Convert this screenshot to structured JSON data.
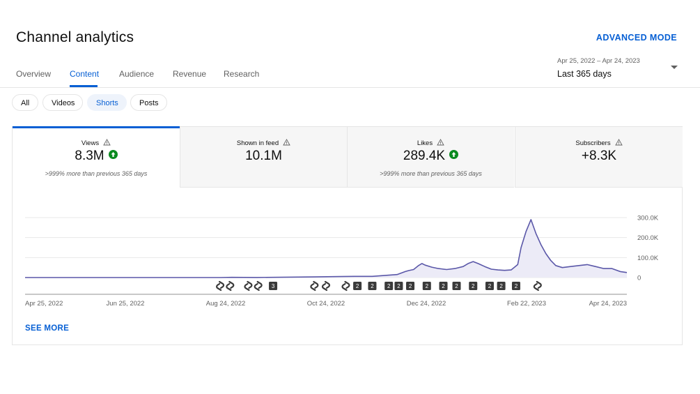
{
  "header": {
    "title": "Channel analytics",
    "advanced_mode": "ADVANCED MODE"
  },
  "tabs": [
    {
      "label": "Overview",
      "active": false
    },
    {
      "label": "Content",
      "active": true
    },
    {
      "label": "Audience",
      "active": false
    },
    {
      "label": "Revenue",
      "active": false
    },
    {
      "label": "Research",
      "active": false
    }
  ],
  "date_range": {
    "range": "Apr 25, 2022 – Apr 24, 2023",
    "label": "Last 365 days"
  },
  "chips": [
    {
      "label": "All",
      "selected": false
    },
    {
      "label": "Videos",
      "selected": false
    },
    {
      "label": "Shorts",
      "selected": true
    },
    {
      "label": "Posts",
      "selected": false
    }
  ],
  "metrics": [
    {
      "label": "Views",
      "value": "8.3M",
      "trend_up": true,
      "comparison": ">999% more than previous 365 days"
    },
    {
      "label": "Shown in feed",
      "value": "10.1M",
      "trend_up": false,
      "comparison": ""
    },
    {
      "label": "Likes",
      "value": "289.4K",
      "trend_up": true,
      "comparison": ">999% more than previous 365 days"
    },
    {
      "label": "Subscribers",
      "value": "+8.3K",
      "trend_up": false,
      "comparison": ""
    }
  ],
  "see_more": "SEE MORE",
  "colors": {
    "accent": "#065fd4",
    "line": "#5a57a8",
    "fill": "#ecebf7",
    "trend_up": "#0a8a1f"
  },
  "chart_data": {
    "type": "area",
    "x_ticks": [
      "Apr 25, 2022",
      "Jun 25, 2022",
      "Aug 24, 2022",
      "Oct 24, 2022",
      "Dec 24, 2022",
      "Feb 22, 2023",
      "Apr 24, 2023"
    ],
    "y_ticks": [
      "300.0K",
      "200.0K",
      "100.0K",
      "0"
    ],
    "ylim": [
      0,
      300000
    ],
    "grid": true,
    "series": [
      {
        "values": [
          [
            0,
            0
          ],
          [
            118,
            0
          ],
          [
            125,
            1000
          ],
          [
            140,
            500
          ],
          [
            160,
            2000
          ],
          [
            175,
            3000
          ],
          [
            190,
            5000
          ],
          [
            200,
            6000
          ],
          [
            210,
            6000
          ],
          [
            215,
            9000
          ],
          [
            220,
            12000
          ],
          [
            225,
            15000
          ],
          [
            230,
            30000
          ],
          [
            232,
            35000
          ],
          [
            235,
            40000
          ],
          [
            238,
            60000
          ],
          [
            240,
            70000
          ],
          [
            242,
            62000
          ],
          [
            246,
            52000
          ],
          [
            250,
            45000
          ],
          [
            255,
            40000
          ],
          [
            260,
            45000
          ],
          [
            265,
            55000
          ],
          [
            268,
            70000
          ],
          [
            271,
            80000
          ],
          [
            274,
            70000
          ],
          [
            278,
            55000
          ],
          [
            282,
            42000
          ],
          [
            286,
            38000
          ],
          [
            290,
            36000
          ],
          [
            294,
            38000
          ],
          [
            298,
            65000
          ],
          [
            300,
            150000
          ],
          [
            303,
            230000
          ],
          [
            306,
            290000
          ],
          [
            309,
            220000
          ],
          [
            312,
            165000
          ],
          [
            315,
            120000
          ],
          [
            318,
            85000
          ],
          [
            321,
            60000
          ],
          [
            325,
            50000
          ],
          [
            330,
            55000
          ],
          [
            335,
            60000
          ],
          [
            340,
            65000
          ],
          [
            345,
            55000
          ],
          [
            350,
            45000
          ],
          [
            355,
            45000
          ],
          [
            360,
            30000
          ],
          [
            364,
            25000
          ]
        ]
      }
    ],
    "x_domain": [
      0,
      364
    ],
    "annotation_markers": [
      {
        "day": 118,
        "label": ""
      },
      {
        "day": 124,
        "label": ""
      },
      {
        "day": 135,
        "label": ""
      },
      {
        "day": 141,
        "label": ""
      },
      {
        "day": 150,
        "label": "3"
      },
      {
        "day": 175,
        "label": ""
      },
      {
        "day": 182,
        "label": ""
      },
      {
        "day": 194,
        "label": ""
      },
      {
        "day": 201,
        "label": "2"
      },
      {
        "day": 210,
        "label": "2"
      },
      {
        "day": 220,
        "label": "2"
      },
      {
        "day": 226,
        "label": "2"
      },
      {
        "day": 233,
        "label": "2"
      },
      {
        "day": 243,
        "label": "2"
      },
      {
        "day": 253,
        "label": "2"
      },
      {
        "day": 261,
        "label": "2"
      },
      {
        "day": 271,
        "label": "2"
      },
      {
        "day": 281,
        "label": "2"
      },
      {
        "day": 288,
        "label": "2"
      },
      {
        "day": 297,
        "label": "2"
      },
      {
        "day": 310,
        "label": ""
      }
    ]
  }
}
